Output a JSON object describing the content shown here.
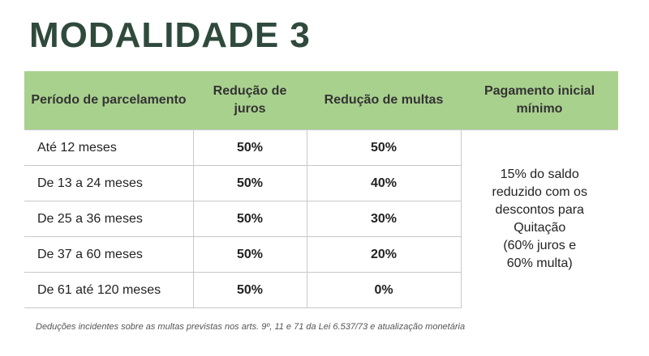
{
  "title": "MODALIDADE 3",
  "headers": {
    "period": "Período de parcelamento",
    "interest": "Redução de juros",
    "fines": "Redução de multas",
    "payment": "Pagamento inicial mínimo"
  },
  "rows": [
    {
      "period": "Até 12 meses",
      "interest": "50%",
      "fines": "50%"
    },
    {
      "period": "De 13 a 24 meses",
      "interest": "50%",
      "fines": "40%"
    },
    {
      "period": "De 25 a 36 meses",
      "interest": "50%",
      "fines": "30%"
    },
    {
      "period": "De 37 a 60 meses",
      "interest": "50%",
      "fines": "20%"
    },
    {
      "period": "De 61 até 120 meses",
      "interest": "50%",
      "fines": "0%"
    }
  ],
  "payment_text": "15% do saldo\nreduzido com os\ndescontos para\nQuitação\n(60% juros e\n60% multa)",
  "footnote": "Deduções incidentes sobre as multas previstas nos arts. 9º, 11 e 71 da Lei 6.537/73 e atualização monetária",
  "colors": {
    "header_bg": "#a9d18e",
    "title": "#2f4a3c"
  }
}
